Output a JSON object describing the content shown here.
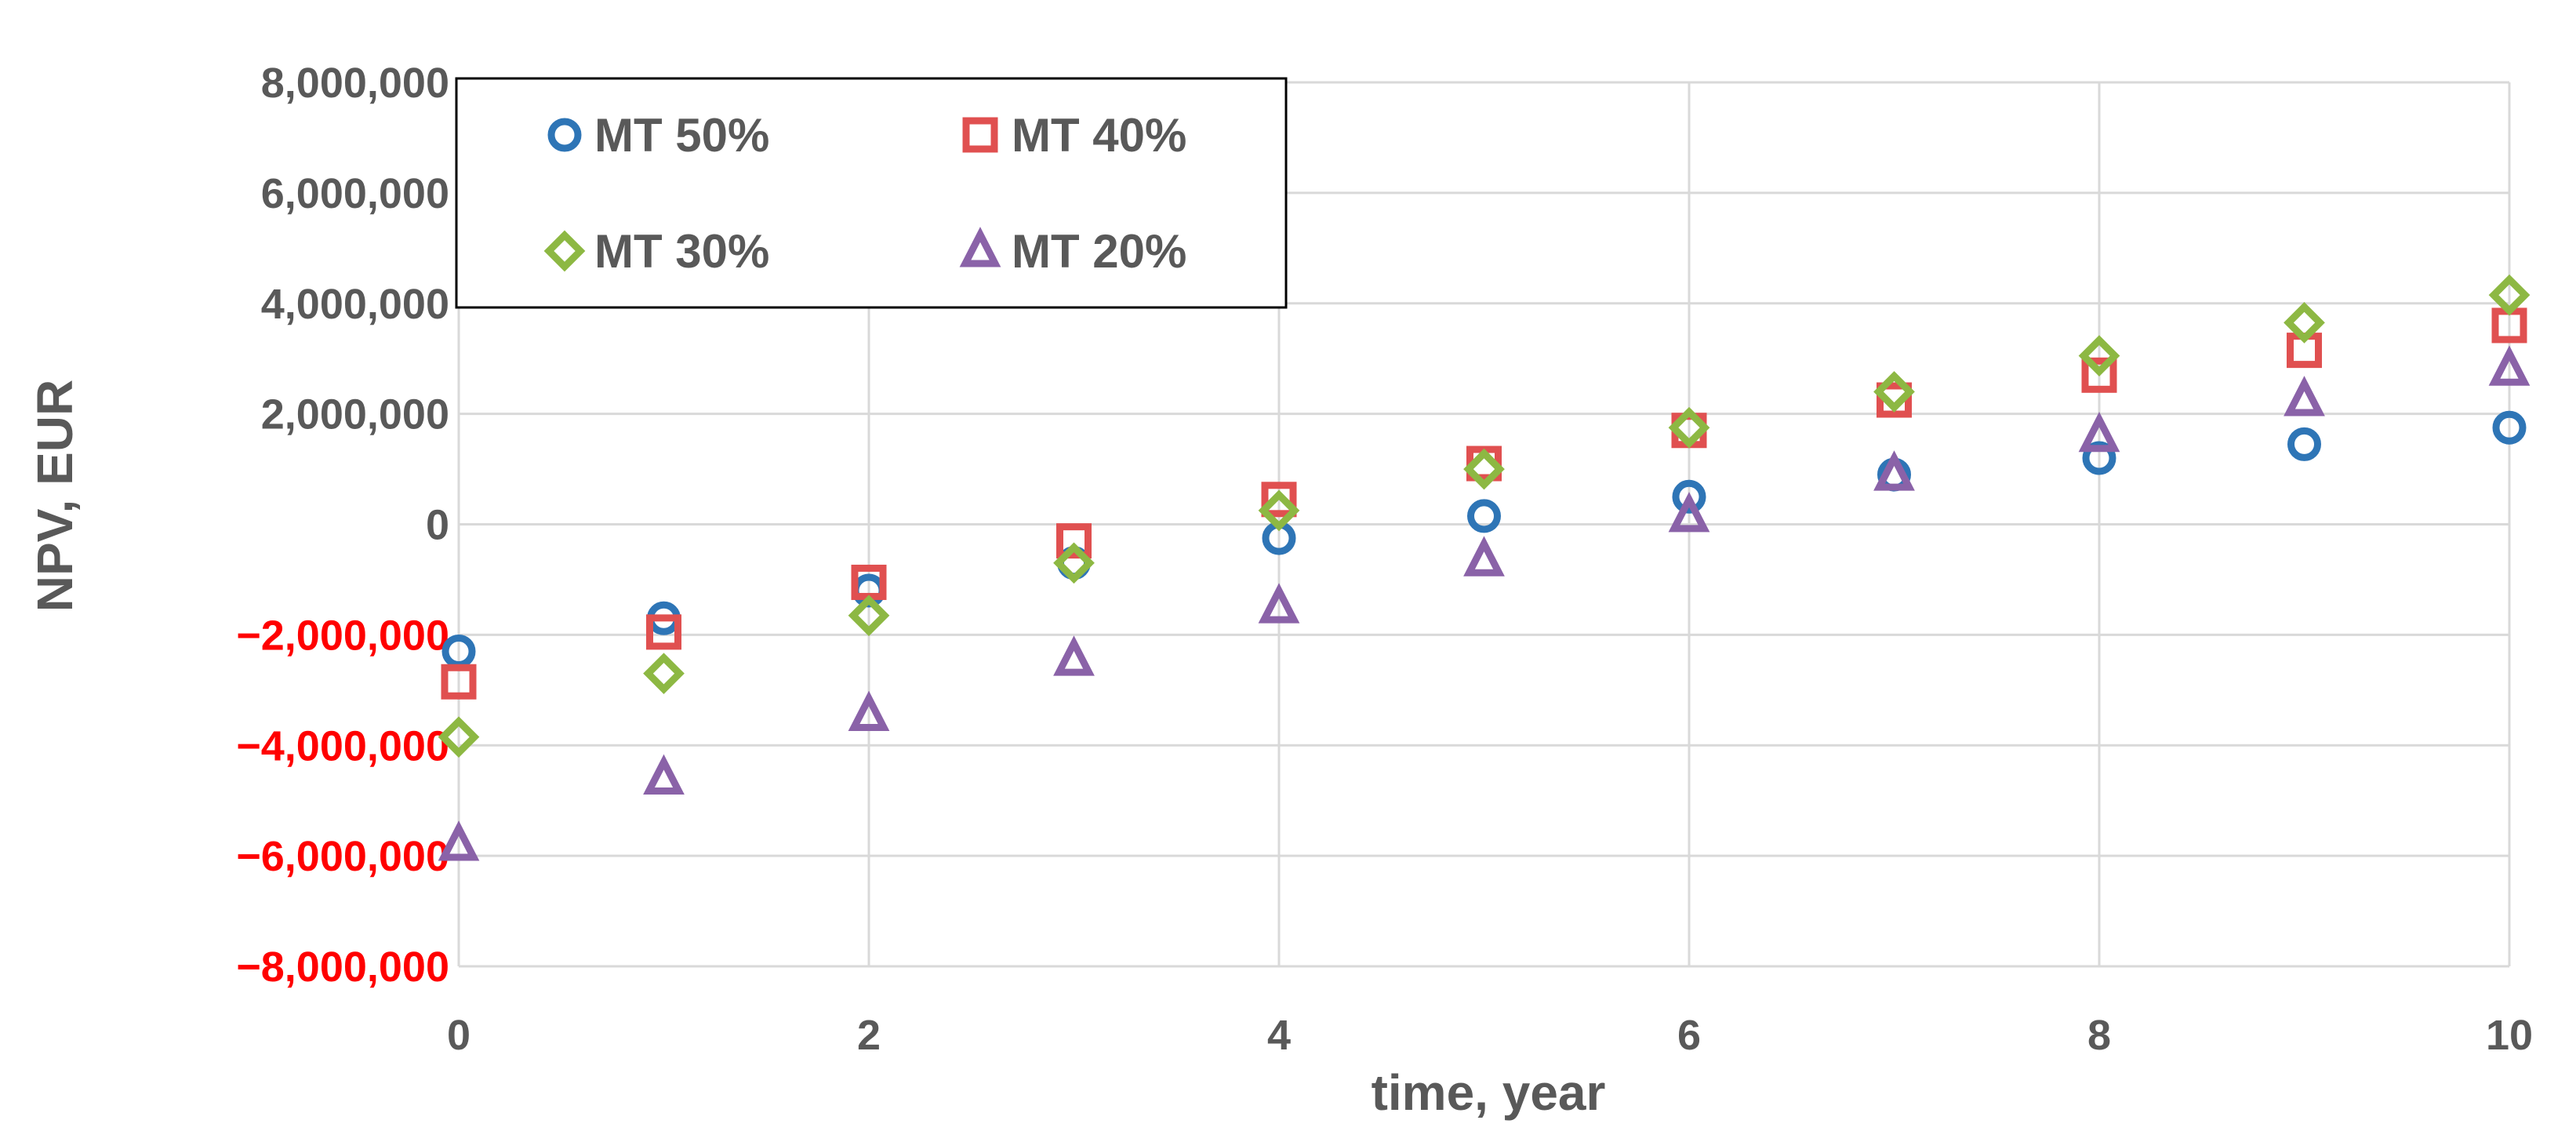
{
  "chart_data": {
    "type": "scatter",
    "title": "",
    "xlabel": "time, year",
    "ylabel": "NPV, EUR",
    "xlim": [
      0,
      10
    ],
    "ylim": [
      -8000000,
      8000000
    ],
    "x_ticks": [
      0,
      2,
      4,
      6,
      8,
      10
    ],
    "x_tick_labels": [
      "0",
      "2",
      "4",
      "6",
      "8",
      "10"
    ],
    "y_ticks": [
      8000000,
      6000000,
      4000000,
      2000000,
      0,
      -2000000,
      -4000000,
      -6000000,
      -8000000
    ],
    "y_tick_labels": [
      "8,000,000",
      "6,000,000",
      "4,000,000",
      "2,000,000",
      "0",
      "−2,000,000",
      "−4,000,000",
      "−6,000,000",
      "−8,000,000"
    ],
    "grid": true,
    "legend_position": "top-left",
    "x": [
      0,
      1,
      2,
      3,
      4,
      5,
      6,
      7,
      8,
      9,
      10
    ],
    "series": [
      {
        "name": "MT 50%",
        "marker": "circle",
        "color": "#2E75B6",
        "values": [
          -2300000,
          -1700000,
          -1200000,
          -700000,
          -250000,
          150000,
          500000,
          900000,
          1200000,
          1450000,
          1750000
        ]
      },
      {
        "name": "MT 40%",
        "marker": "square",
        "color": "#E05050",
        "values": [
          -2850000,
          -1950000,
          -1050000,
          -300000,
          450000,
          1100000,
          1700000,
          2250000,
          2700000,
          3150000,
          3600000
        ]
      },
      {
        "name": "MT 30%",
        "marker": "diamond",
        "color": "#8DB843",
        "values": [
          -3850000,
          -2700000,
          -1650000,
          -700000,
          250000,
          1000000,
          1750000,
          2400000,
          3050000,
          3650000,
          4150000
        ]
      },
      {
        "name": "MT 20%",
        "marker": "triangle",
        "color": "#8A62A8",
        "values": [
          -5800000,
          -4600000,
          -3450000,
          -2450000,
          -1500000,
          -650000,
          150000,
          900000,
          1600000,
          2250000,
          2800000
        ]
      }
    ],
    "colors": {
      "positive_tick": "#595959",
      "negative_tick": "#FF0000",
      "grid": "#D9D9D9",
      "axis_text": "#595959"
    }
  }
}
